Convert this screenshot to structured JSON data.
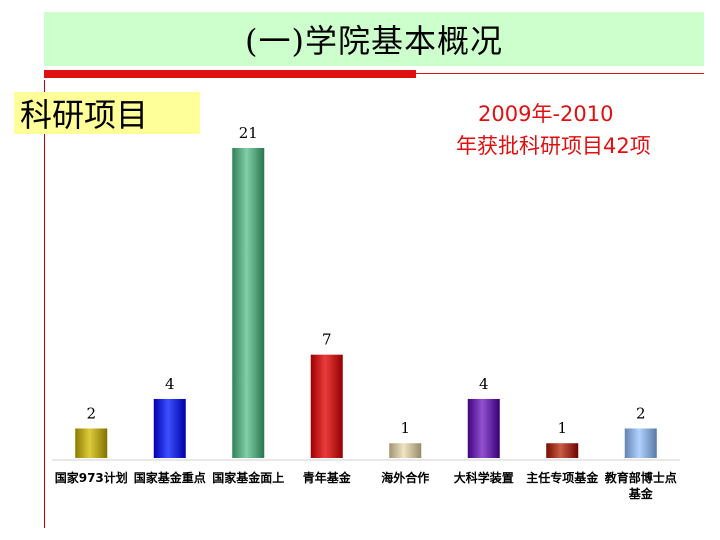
{
  "slide": {
    "title": "(一)学院基本概况",
    "side_label": "科研项目",
    "summary_line1": "2009年-2010",
    "summary_line2": "年获批科研项目42项"
  },
  "chart_data": {
    "type": "bar",
    "categories": [
      "国家973计划",
      "国家基金重点",
      "国家基金面上",
      "青年基金",
      "海外合作",
      "大科学装置",
      "主任专项基金",
      "教育部博士点基金"
    ],
    "values": [
      2,
      4,
      21,
      7,
      1,
      4,
      1,
      2
    ],
    "colors": [
      "#b5a314",
      "#1428d8",
      "#5aa880",
      "#c41414",
      "#c8bc9a",
      "#6a2aa8",
      "#a0341c",
      "#8aaad8"
    ],
    "title": "",
    "xlabel": "",
    "ylabel": "",
    "ylim": [
      0,
      21
    ],
    "grid": false,
    "legend": "none"
  }
}
